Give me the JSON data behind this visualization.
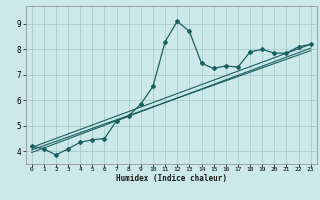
{
  "xlabel": "Humidex (Indice chaleur)",
  "bg_color": "#cce8e8",
  "grid_color": "#aacccc",
  "line_color": "#1a6060",
  "xlim": [
    -0.5,
    23.5
  ],
  "ylim": [
    3.5,
    9.7
  ],
  "xticks": [
    0,
    1,
    2,
    3,
    4,
    5,
    6,
    7,
    8,
    9,
    10,
    11,
    12,
    13,
    14,
    15,
    16,
    17,
    18,
    19,
    20,
    21,
    22,
    23
  ],
  "yticks": [
    4,
    5,
    6,
    7,
    8,
    9
  ],
  "series1_x": [
    0,
    1,
    2,
    3,
    4,
    5,
    6,
    7,
    8,
    9,
    10,
    11,
    12,
    13,
    14,
    15,
    16,
    17,
    18,
    19,
    20,
    21,
    22,
    23
  ],
  "series1_y": [
    4.2,
    4.1,
    3.85,
    4.1,
    4.35,
    4.45,
    4.5,
    5.2,
    5.4,
    5.85,
    6.55,
    8.3,
    9.1,
    8.7,
    7.45,
    7.25,
    7.35,
    7.3,
    7.9,
    8.0,
    7.85,
    7.85,
    8.1,
    8.2
  ],
  "line1_x": [
    0,
    23
  ],
  "line1_y": [
    4.15,
    8.2
  ],
  "line2_x": [
    0,
    23
  ],
  "line2_y": [
    4.05,
    7.95
  ],
  "line3_x": [
    0,
    23
  ],
  "line3_y": [
    3.95,
    8.05
  ]
}
